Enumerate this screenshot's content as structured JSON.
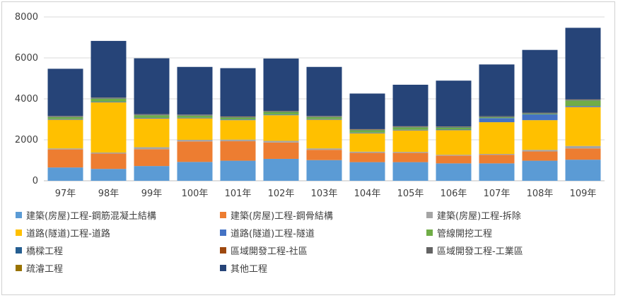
{
  "chart_data": {
    "type": "bar",
    "stacked": true,
    "title": "",
    "xlabel": "",
    "ylabel": "",
    "ylim": [
      0,
      8000
    ],
    "yticks": [
      0,
      2000,
      4000,
      6000,
      8000
    ],
    "grid": true,
    "legend_position": "bottom",
    "categories": [
      "97年",
      "98年",
      "99年",
      "100年",
      "101年",
      "102年",
      "103年",
      "104年",
      "105年",
      "106年",
      "107年",
      "108年",
      "109年"
    ],
    "series": [
      {
        "name": "建築(房屋)工程-鋼筋混凝土結構",
        "color": "#5b9bd5",
        "values": [
          650,
          580,
          720,
          920,
          980,
          1070,
          1010,
          910,
          910,
          850,
          850,
          980,
          1030
        ]
      },
      {
        "name": "建築(房屋)工程-鋼骨結構",
        "color": "#ed7d31",
        "values": [
          880,
          750,
          820,
          1000,
          950,
          800,
          500,
          450,
          450,
          380,
          420,
          450,
          550
        ]
      },
      {
        "name": "建築(房屋)工程-拆除",
        "color": "#a5a5a5",
        "values": [
          50,
          50,
          100,
          80,
          80,
          80,
          70,
          60,
          50,
          40,
          40,
          80,
          120
        ]
      },
      {
        "name": "道路(隧道)工程-道路",
        "color": "#ffc000",
        "values": [
          1400,
          2450,
          1400,
          1050,
          950,
          1250,
          1400,
          900,
          1050,
          1200,
          1550,
          1450,
          1900
        ]
      },
      {
        "name": "道路(隧道)工程-隧道",
        "color": "#4472c4",
        "values": [
          30,
          30,
          30,
          30,
          30,
          30,
          30,
          30,
          30,
          30,
          200,
          280,
          50
        ]
      },
      {
        "name": "管線開挖工程",
        "color": "#70ad47",
        "values": [
          100,
          150,
          130,
          100,
          100,
          130,
          100,
          120,
          120,
          100,
          40,
          30,
          270
        ]
      },
      {
        "name": "橋樑工程",
        "color": "#255e91",
        "values": [
          20,
          20,
          20,
          20,
          20,
          20,
          20,
          20,
          20,
          20,
          20,
          20,
          20
        ]
      },
      {
        "name": "區域開發工程-社區",
        "color": "#9e480e",
        "values": [
          10,
          10,
          10,
          10,
          10,
          10,
          10,
          10,
          10,
          10,
          10,
          10,
          10
        ]
      },
      {
        "name": "區域開發工程-工業區",
        "color": "#636363",
        "values": [
          10,
          10,
          10,
          10,
          10,
          10,
          10,
          10,
          10,
          10,
          10,
          10,
          10
        ]
      },
      {
        "name": "疏濬工程",
        "color": "#997300",
        "values": [
          10,
          10,
          10,
          10,
          10,
          10,
          10,
          10,
          10,
          10,
          10,
          10,
          10
        ]
      },
      {
        "name": "其他工程",
        "color": "#264478",
        "values": [
          2310,
          2770,
          2730,
          2330,
          2360,
          2560,
          2400,
          1740,
          2030,
          2240,
          2530,
          3070,
          3500
        ]
      }
    ]
  }
}
